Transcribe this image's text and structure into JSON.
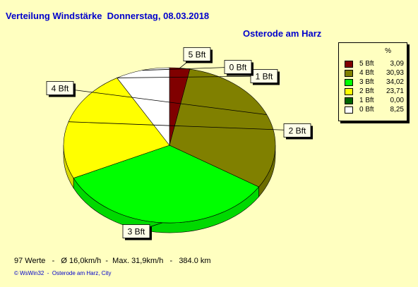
{
  "header": {
    "title": "Verteilung Windstärke  Donnerstag, 08.03.2018",
    "location": "Osterode am Harz"
  },
  "chart_data": {
    "type": "pie",
    "legend_header": "%",
    "legend_position": "top-right",
    "slices": [
      {
        "label": "5 Bft",
        "value": 3.09,
        "value_text": "3,09",
        "color": "#800000"
      },
      {
        "label": "4 Bft",
        "value": 30.93,
        "value_text": "30,93",
        "color": "#808000"
      },
      {
        "label": "3 Bft",
        "value": 34.02,
        "value_text": "34,02",
        "color": "#00ff00"
      },
      {
        "label": "2 Bft",
        "value": 23.71,
        "value_text": "23,71",
        "color": "#ffff00"
      },
      {
        "label": "1 Bft",
        "value": 0.0,
        "value_text": "0,00",
        "color": "#006400"
      },
      {
        "label": "0 Bft",
        "value": 8.25,
        "value_text": "8,25",
        "color": "#ffffff"
      }
    ]
  },
  "footer": {
    "stats": "97 Werte   -   Ø 16,0km/h  -  Max. 31,9km/h   -   384.0 km",
    "credit": "© WsWin32  -  Osterode am Harz, City"
  }
}
